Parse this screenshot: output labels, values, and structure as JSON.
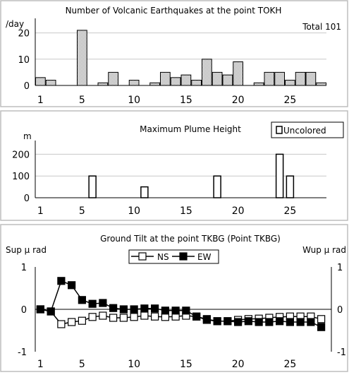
{
  "chart_data": [
    {
      "type": "bar",
      "title": "Number of Volcanic Earthquakes at the point TOKH",
      "ylabel": "/day",
      "annotation": "Total 101",
      "x": [
        1,
        2,
        3,
        4,
        5,
        6,
        7,
        8,
        9,
        10,
        11,
        12,
        13,
        14,
        15,
        16,
        17,
        18,
        19,
        20,
        21,
        22,
        23,
        24,
        25,
        26,
        27,
        28
      ],
      "values": [
        3,
        2,
        0,
        0,
        21,
        0,
        1,
        5,
        0,
        2,
        0,
        1,
        5,
        3,
        4,
        2,
        10,
        5,
        4,
        9,
        0,
        1,
        5,
        5,
        2,
        5,
        5,
        1
      ],
      "xticks": [
        "1",
        "5",
        "10",
        "15",
        "20",
        "25"
      ],
      "yticks": [
        "0",
        "10",
        "20"
      ],
      "ylim": [
        0,
        25
      ],
      "grid": true,
      "bar_color": "#9a9a9a"
    },
    {
      "type": "bar",
      "title": "Maximum Plume Height",
      "ylabel": "m",
      "legend": [
        "Uncolored"
      ],
      "legend_position": "top-right",
      "points": [
        {
          "day": 6,
          "value": 100
        },
        {
          "day": 11,
          "value": 50
        },
        {
          "day": 18,
          "value": 100
        },
        {
          "day": 24,
          "value": 200
        },
        {
          "day": 25,
          "value": 100
        }
      ],
      "xticks": [
        "1",
        "5",
        "10",
        "15",
        "20",
        "25"
      ],
      "yticks": [
        "0",
        "100",
        "200"
      ],
      "ylim": [
        0,
        250
      ],
      "grid": true
    },
    {
      "type": "line",
      "title": "Ground Tilt at the point TKBG (Point TKBG)",
      "ylabel_left": "Sup μ rad",
      "ylabel_right": "Wup μ rad",
      "x": [
        1,
        2,
        3,
        4,
        5,
        6,
        7,
        8,
        9,
        10,
        11,
        12,
        13,
        14,
        15,
        16,
        17,
        18,
        19,
        20,
        21,
        22,
        23,
        24,
        25,
        26,
        27,
        28
      ],
      "series": [
        {
          "name": "NS",
          "marker": "open-square",
          "values": [
            0,
            -0.05,
            -0.35,
            -0.3,
            -0.27,
            -0.18,
            -0.15,
            -0.2,
            -0.2,
            -0.18,
            -0.15,
            -0.17,
            -0.18,
            -0.17,
            -0.15,
            -0.17,
            -0.25,
            -0.28,
            -0.28,
            -0.25,
            -0.23,
            -0.22,
            -0.2,
            -0.18,
            -0.17,
            -0.17,
            -0.17,
            -0.23
          ]
        },
        {
          "name": "EW",
          "marker": "filled-square",
          "values": [
            0,
            -0.05,
            0.67,
            0.57,
            0.22,
            0.13,
            0.15,
            0.03,
            0,
            0,
            0.02,
            0.02,
            -0.03,
            -0.03,
            -0.03,
            -0.17,
            -0.23,
            -0.28,
            -0.28,
            -0.3,
            -0.28,
            -0.3,
            -0.3,
            -0.28,
            -0.3,
            -0.3,
            -0.3,
            -0.42
          ]
        }
      ],
      "xticks": [
        "1",
        "5",
        "10",
        "15",
        "20",
        "25"
      ],
      "yticks": [
        "-1",
        "0",
        "1"
      ],
      "ylim": [
        -1,
        1
      ],
      "legend_position": "top-center",
      "grid": false
    }
  ]
}
